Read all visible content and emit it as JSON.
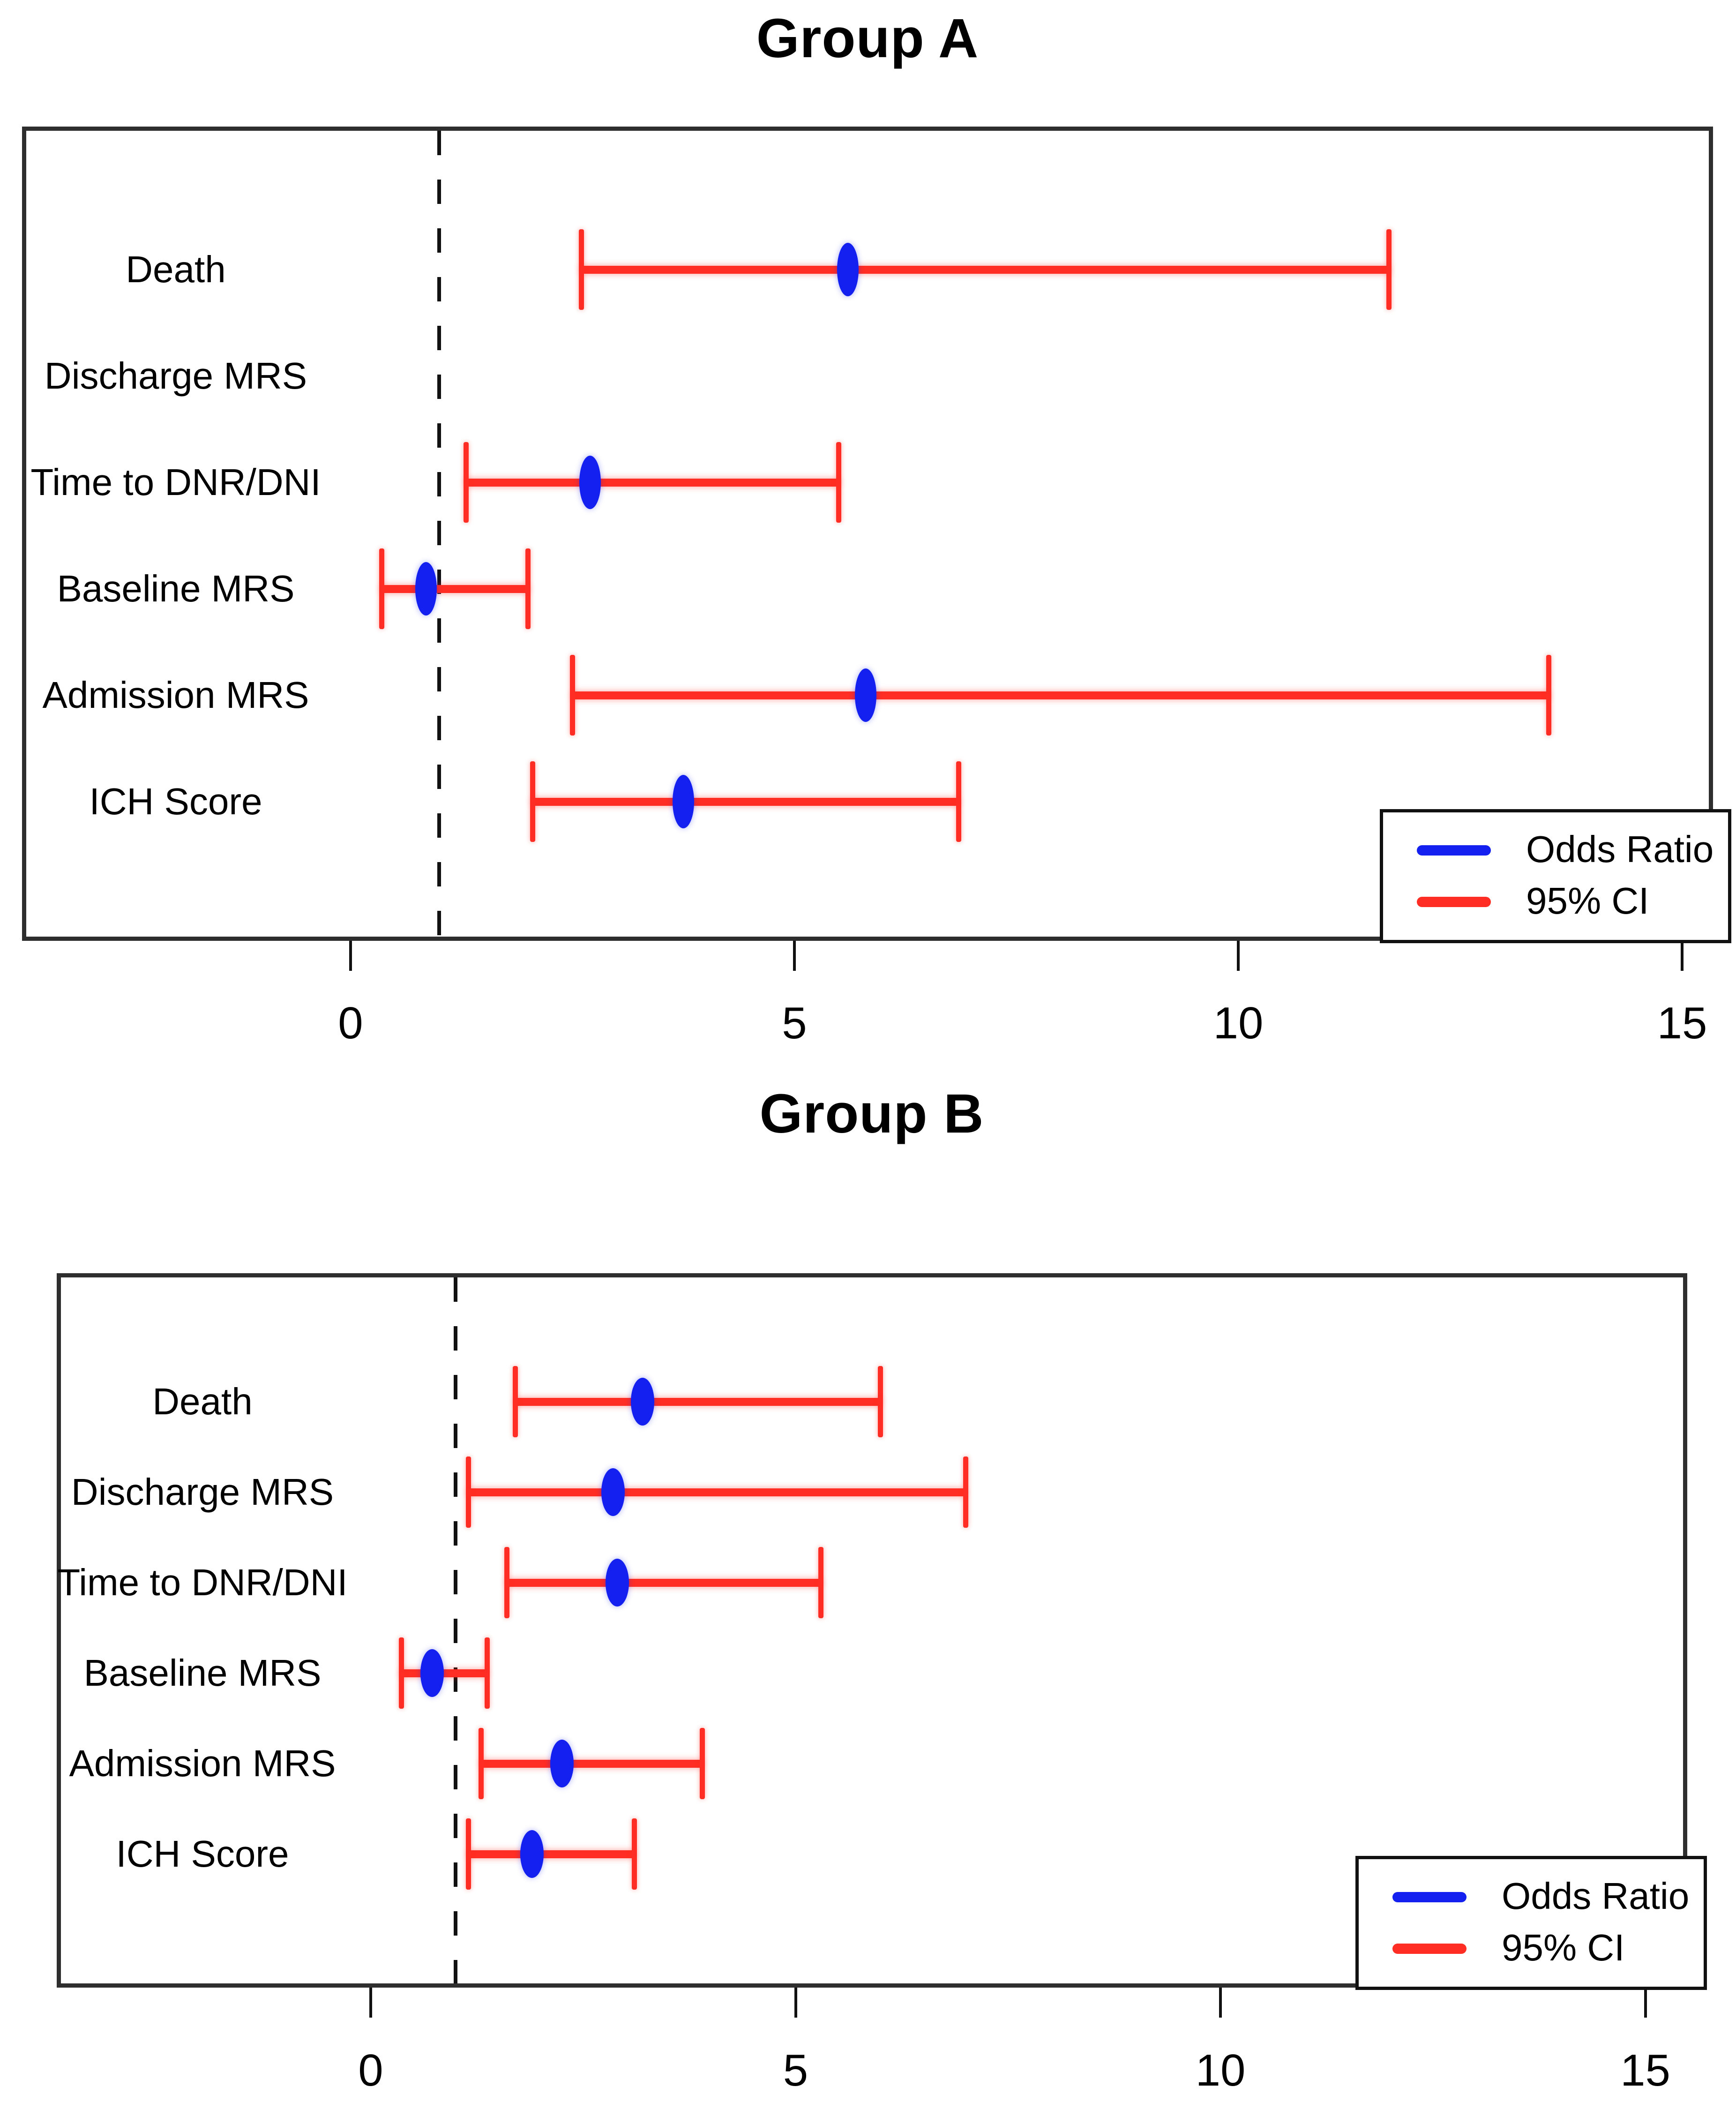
{
  "page": {
    "background": "#ffffff"
  },
  "colors": {
    "odds_ratio": "#1320f0",
    "ci": "#ff2d23",
    "reference_line": "#111111",
    "plot_border": "#2e2e2e",
    "text": "#000000"
  },
  "chart_data": [
    {
      "type": "scatter",
      "variant": "forest-plot",
      "title": "Group A",
      "categories": [
        "Death",
        "Discharge MRS",
        "Time to DNR/DNI",
        "Baseline MRS",
        "Admission MRS",
        "ICH Score"
      ],
      "series": [
        {
          "name": "Odds Ratio",
          "values": [
            5.6,
            null,
            2.7,
            0.85,
            5.8,
            3.75
          ]
        },
        {
          "name": "95% CI lower",
          "values": [
            2.6,
            null,
            1.3,
            0.35,
            2.5,
            2.05
          ]
        },
        {
          "name": "95% CI upper",
          "values": [
            11.7,
            null,
            5.5,
            2.0,
            13.5,
            6.85
          ]
        }
      ],
      "points": [
        {
          "label": "Death",
          "or": 5.6,
          "ci_low": 2.6,
          "ci_high": 11.7
        },
        {
          "label": "Discharge MRS",
          "or": null,
          "ci_low": null,
          "ci_high": null
        },
        {
          "label": "Time to DNR/DNI",
          "or": 2.7,
          "ci_low": 1.3,
          "ci_high": 5.5
        },
        {
          "label": "Baseline MRS",
          "or": 0.85,
          "ci_low": 0.35,
          "ci_high": 2.0
        },
        {
          "label": "Admission MRS",
          "or": 5.8,
          "ci_low": 2.5,
          "ci_high": 13.5
        },
        {
          "label": "ICH Score",
          "or": 3.75,
          "ci_low": 2.05,
          "ci_high": 6.85
        }
      ],
      "xlabel": "",
      "ylabel": "",
      "xticks": [
        0,
        5,
        10,
        15
      ],
      "xlim": [
        -3.7,
        15.4
      ],
      "reference_line_x": 1,
      "grid": false,
      "legend": {
        "position": "bottom-right",
        "entries": [
          "Odds Ratio",
          "95% CI"
        ]
      }
    },
    {
      "type": "scatter",
      "variant": "forest-plot",
      "title": "Group B",
      "categories": [
        "Death",
        "Discharge MRS",
        "Time to DNR/DNI",
        "Baseline MRS",
        "Admission MRS",
        "ICH Score"
      ],
      "series": [
        {
          "name": "Odds Ratio",
          "values": [
            3.2,
            2.85,
            2.9,
            0.72,
            2.25,
            1.9
          ]
        },
        {
          "name": "95% CI lower",
          "values": [
            1.7,
            1.15,
            1.6,
            0.36,
            1.3,
            1.15
          ]
        },
        {
          "name": "95% CI upper",
          "values": [
            6.0,
            7.0,
            5.3,
            1.37,
            3.9,
            3.1
          ]
        }
      ],
      "points": [
        {
          "label": "Death",
          "or": 3.2,
          "ci_low": 1.7,
          "ci_high": 6.0
        },
        {
          "label": "Discharge MRS",
          "or": 2.85,
          "ci_low": 1.15,
          "ci_high": 7.0
        },
        {
          "label": "Time to DNR/DNI",
          "or": 2.9,
          "ci_low": 1.6,
          "ci_high": 5.3
        },
        {
          "label": "Baseline MRS",
          "or": 0.72,
          "ci_low": 0.36,
          "ci_high": 1.37
        },
        {
          "label": "Admission MRS",
          "or": 2.25,
          "ci_low": 1.3,
          "ci_high": 3.9
        },
        {
          "label": "ICH Score",
          "or": 1.9,
          "ci_low": 1.15,
          "ci_high": 3.1
        }
      ],
      "xlabel": "",
      "ylabel": "",
      "xticks": [
        0,
        5,
        10,
        15
      ],
      "xlim": [
        -3.7,
        15.5
      ],
      "reference_line_x": 1,
      "grid": false,
      "legend": {
        "position": "bottom-right",
        "entries": [
          "Odds Ratio",
          "95% CI"
        ]
      }
    }
  ]
}
